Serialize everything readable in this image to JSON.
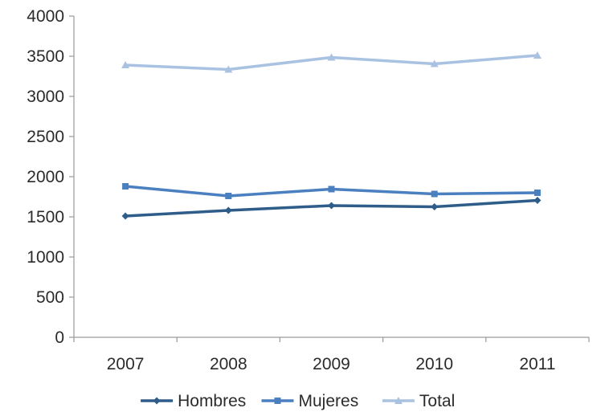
{
  "chart_data": {
    "type": "line",
    "categories": [
      "2007",
      "2008",
      "2009",
      "2010",
      "2011"
    ],
    "ylim": [
      0,
      4000
    ],
    "yticks": [
      0,
      500,
      1000,
      1500,
      2000,
      2500,
      3000,
      3500,
      4000
    ],
    "grid": false,
    "legend_position": "bottom",
    "series": [
      {
        "name": "Hombres",
        "values": [
          1510,
          1580,
          1640,
          1625,
          1705
        ],
        "color": "#2f5d8a",
        "marker": "diamond"
      },
      {
        "name": "Mujeres",
        "values": [
          1880,
          1760,
          1845,
          1785,
          1800
        ],
        "color": "#4a7fc0",
        "marker": "square"
      },
      {
        "name": "Total",
        "values": [
          3390,
          3335,
          3485,
          3405,
          3510
        ],
        "color": "#a9c2e2",
        "marker": "triangle"
      }
    ]
  }
}
